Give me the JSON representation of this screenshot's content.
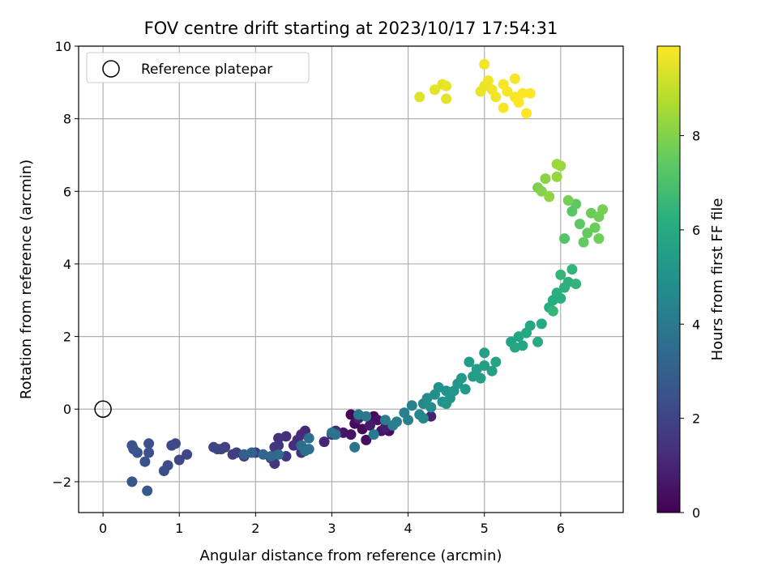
{
  "chart_data": {
    "type": "scatter",
    "title": "FOV centre drift starting at 2023/10/17 17:54:31",
    "xlabel": "Angular distance from reference (arcmin)",
    "ylabel": "Rotation from reference (arcmin)",
    "xlim": [
      -0.32,
      6.82
    ],
    "ylim": [
      -2.85,
      10.0
    ],
    "x_ticks": [
      0,
      1,
      2,
      3,
      4,
      5,
      6
    ],
    "y_ticks": [
      -2,
      0,
      2,
      4,
      6,
      8,
      10
    ],
    "x_tick_labels": [
      "0",
      "1",
      "2",
      "3",
      "4",
      "5",
      "6"
    ],
    "y_tick_labels": [
      "−2",
      "0",
      "2",
      "4",
      "6",
      "8",
      "10"
    ],
    "grid": true,
    "legend": {
      "placement": "top-left",
      "entries": [
        "Reference platepar"
      ]
    },
    "reference_point": {
      "x": 0,
      "y": 0,
      "marker": "open-circle"
    },
    "colorbar": {
      "label": "Hours from first FF file",
      "colormap": "viridis",
      "range": [
        0,
        9.9
      ],
      "ticks": [
        0,
        2,
        4,
        6,
        8
      ],
      "tick_labels": [
        "0",
        "2",
        "4",
        "6",
        "8"
      ]
    },
    "points": [
      [
        3.25,
        -0.15,
        0.1
      ],
      [
        3.55,
        -0.2,
        0.2
      ],
      [
        3.3,
        -0.4,
        0.3
      ],
      [
        3.4,
        -0.55,
        0.3
      ],
      [
        3.45,
        -0.85,
        0.4
      ],
      [
        3.75,
        -0.6,
        0.4
      ],
      [
        3.25,
        -0.7,
        0.5
      ],
      [
        3.6,
        -0.3,
        0.5
      ],
      [
        3.65,
        -0.6,
        0.6
      ],
      [
        3.15,
        -0.65,
        0.6
      ],
      [
        3.5,
        -0.45,
        0.7
      ],
      [
        3.7,
        -0.5,
        0.8
      ],
      [
        3.35,
        -0.25,
        0.9
      ],
      [
        4.3,
        -0.2,
        0.9
      ],
      [
        3.0,
        -0.7,
        1.0
      ],
      [
        2.9,
        -0.9,
        1.0
      ],
      [
        3.05,
        -0.6,
        1.1
      ],
      [
        2.65,
        -0.6,
        1.1
      ],
      [
        2.6,
        -0.7,
        1.2
      ],
      [
        2.55,
        -0.85,
        1.2
      ],
      [
        2.5,
        -1.0,
        1.3
      ],
      [
        2.4,
        -0.75,
        1.3
      ],
      [
        2.3,
        -0.8,
        1.4
      ],
      [
        2.6,
        -1.2,
        1.4
      ],
      [
        2.3,
        -1.0,
        1.5
      ],
      [
        2.25,
        -1.05,
        1.5
      ],
      [
        2.4,
        -1.3,
        1.6
      ],
      [
        2.2,
        -1.35,
        1.6
      ],
      [
        2.25,
        -1.5,
        1.6
      ],
      [
        2.0,
        -1.2,
        1.7
      ],
      [
        1.85,
        -1.3,
        1.7
      ],
      [
        1.75,
        -1.2,
        1.8
      ],
      [
        1.7,
        -1.25,
        1.8
      ],
      [
        1.6,
        -1.05,
        1.9
      ],
      [
        1.55,
        -1.1,
        1.9
      ],
      [
        1.5,
        -1.1,
        2.0
      ],
      [
        1.45,
        -1.05,
        2.0
      ],
      [
        1.1,
        -1.25,
        2.1
      ],
      [
        1.0,
        -1.4,
        2.1
      ],
      [
        0.95,
        -0.95,
        2.2
      ],
      [
        0.9,
        -1.0,
        2.2
      ],
      [
        0.85,
        -1.55,
        2.3
      ],
      [
        0.8,
        -1.7,
        2.3
      ],
      [
        0.6,
        -0.95,
        2.4
      ],
      [
        0.6,
        -1.2,
        2.4
      ],
      [
        0.55,
        -1.45,
        2.5
      ],
      [
        0.45,
        -1.2,
        2.5
      ],
      [
        0.4,
        -1.1,
        2.6
      ],
      [
        0.38,
        -1.0,
        2.6
      ],
      [
        0.38,
        -2.0,
        2.7
      ],
      [
        0.58,
        -2.25,
        2.8
      ],
      [
        1.85,
        -1.25,
        3.0
      ],
      [
        1.95,
        -1.2,
        3.1
      ],
      [
        2.1,
        -1.25,
        3.2
      ],
      [
        2.2,
        -1.3,
        3.3
      ],
      [
        2.3,
        -1.25,
        3.4
      ],
      [
        2.6,
        -1.0,
        3.5
      ],
      [
        2.65,
        -1.15,
        3.5
      ],
      [
        2.7,
        -1.1,
        3.6
      ],
      [
        2.7,
        -0.8,
        3.6
      ],
      [
        3.05,
        -0.7,
        3.7
      ],
      [
        3.0,
        -0.65,
        3.8
      ],
      [
        3.3,
        -1.05,
        3.8
      ],
      [
        3.35,
        -0.15,
        3.9
      ],
      [
        3.45,
        -0.2,
        3.9
      ],
      [
        3.55,
        -0.7,
        4.0
      ],
      [
        3.7,
        -0.3,
        4.1
      ],
      [
        3.8,
        -0.45,
        4.2
      ],
      [
        3.85,
        -0.35,
        4.2
      ],
      [
        3.95,
        -0.1,
        4.3
      ],
      [
        4.0,
        -0.3,
        4.3
      ],
      [
        4.05,
        0.1,
        4.4
      ],
      [
        4.15,
        -0.15,
        4.5
      ],
      [
        4.2,
        -0.25,
        4.5
      ],
      [
        4.2,
        0.15,
        4.6
      ],
      [
        4.25,
        0.3,
        4.7
      ],
      [
        4.3,
        0.05,
        4.8
      ],
      [
        4.35,
        0.4,
        4.9
      ],
      [
        4.4,
        0.6,
        5.0
      ],
      [
        4.45,
        0.2,
        5.0
      ],
      [
        4.5,
        0.5,
        5.0
      ],
      [
        4.5,
        0.15,
        5.1
      ],
      [
        4.55,
        0.3,
        5.1
      ],
      [
        4.6,
        0.5,
        5.2
      ],
      [
        4.65,
        0.7,
        5.2
      ],
      [
        4.7,
        0.85,
        5.3
      ],
      [
        4.75,
        0.55,
        5.3
      ],
      [
        4.8,
        1.3,
        5.4
      ],
      [
        4.85,
        0.9,
        5.4
      ],
      [
        4.9,
        1.1,
        5.5
      ],
      [
        4.95,
        0.85,
        5.5
      ],
      [
        5.0,
        1.2,
        5.5
      ],
      [
        5.0,
        1.55,
        5.6
      ],
      [
        5.1,
        1.05,
        5.6
      ],
      [
        5.15,
        1.3,
        5.7
      ],
      [
        5.35,
        1.85,
        5.7
      ],
      [
        5.4,
        1.7,
        5.8
      ],
      [
        5.45,
        2.0,
        5.8
      ],
      [
        5.5,
        1.75,
        5.8
      ],
      [
        5.55,
        2.1,
        5.9
      ],
      [
        5.6,
        2.3,
        5.9
      ],
      [
        5.7,
        1.85,
        6.0
      ],
      [
        5.75,
        2.35,
        6.0
      ],
      [
        5.85,
        2.8,
        6.1
      ],
      [
        5.9,
        3.0,
        6.1
      ],
      [
        5.95,
        3.2,
        6.2
      ],
      [
        6.0,
        3.05,
        6.2
      ],
      [
        6.05,
        3.35,
        6.3
      ],
      [
        6.1,
        3.5,
        6.3
      ],
      [
        6.15,
        3.85,
        6.4
      ],
      [
        6.2,
        3.45,
        6.4
      ],
      [
        6.0,
        3.7,
        6.5
      ],
      [
        5.9,
        2.7,
        6.5
      ],
      [
        6.05,
        4.7,
        7.2
      ],
      [
        6.15,
        5.45,
        7.3
      ],
      [
        6.2,
        5.65,
        7.4
      ],
      [
        6.25,
        5.1,
        7.4
      ],
      [
        6.3,
        4.6,
        7.5
      ],
      [
        6.35,
        4.85,
        7.5
      ],
      [
        6.4,
        5.4,
        7.6
      ],
      [
        6.45,
        5.0,
        7.6
      ],
      [
        6.5,
        5.3,
        7.7
      ],
      [
        6.5,
        4.7,
        7.7
      ],
      [
        6.55,
        5.5,
        7.8
      ],
      [
        6.1,
        5.75,
        7.8
      ],
      [
        5.7,
        6.1,
        7.9
      ],
      [
        5.75,
        6.0,
        8.0
      ],
      [
        5.8,
        6.35,
        8.1
      ],
      [
        5.85,
        5.85,
        8.2
      ],
      [
        5.95,
        6.4,
        8.3
      ],
      [
        6.0,
        6.7,
        8.3
      ],
      [
        5.95,
        6.75,
        8.4
      ],
      [
        4.15,
        8.6,
        9.4
      ],
      [
        4.35,
        8.8,
        9.5
      ],
      [
        4.45,
        8.95,
        9.5
      ],
      [
        4.5,
        8.55,
        9.5
      ],
      [
        4.5,
        8.9,
        9.6
      ],
      [
        4.95,
        8.75,
        9.6
      ],
      [
        5.0,
        8.9,
        9.6
      ],
      [
        5.0,
        9.5,
        9.7
      ],
      [
        5.05,
        9.05,
        9.7
      ],
      [
        5.1,
        8.8,
        9.7
      ],
      [
        5.15,
        8.6,
        9.7
      ],
      [
        5.25,
        8.95,
        9.8
      ],
      [
        5.25,
        8.3,
        9.8
      ],
      [
        5.3,
        8.75,
        9.8
      ],
      [
        5.4,
        8.6,
        9.8
      ],
      [
        5.4,
        9.1,
        9.8
      ],
      [
        5.45,
        8.45,
        9.9
      ],
      [
        5.5,
        8.7,
        9.9
      ],
      [
        5.55,
        8.15,
        9.9
      ],
      [
        5.6,
        8.7,
        9.9
      ]
    ]
  }
}
